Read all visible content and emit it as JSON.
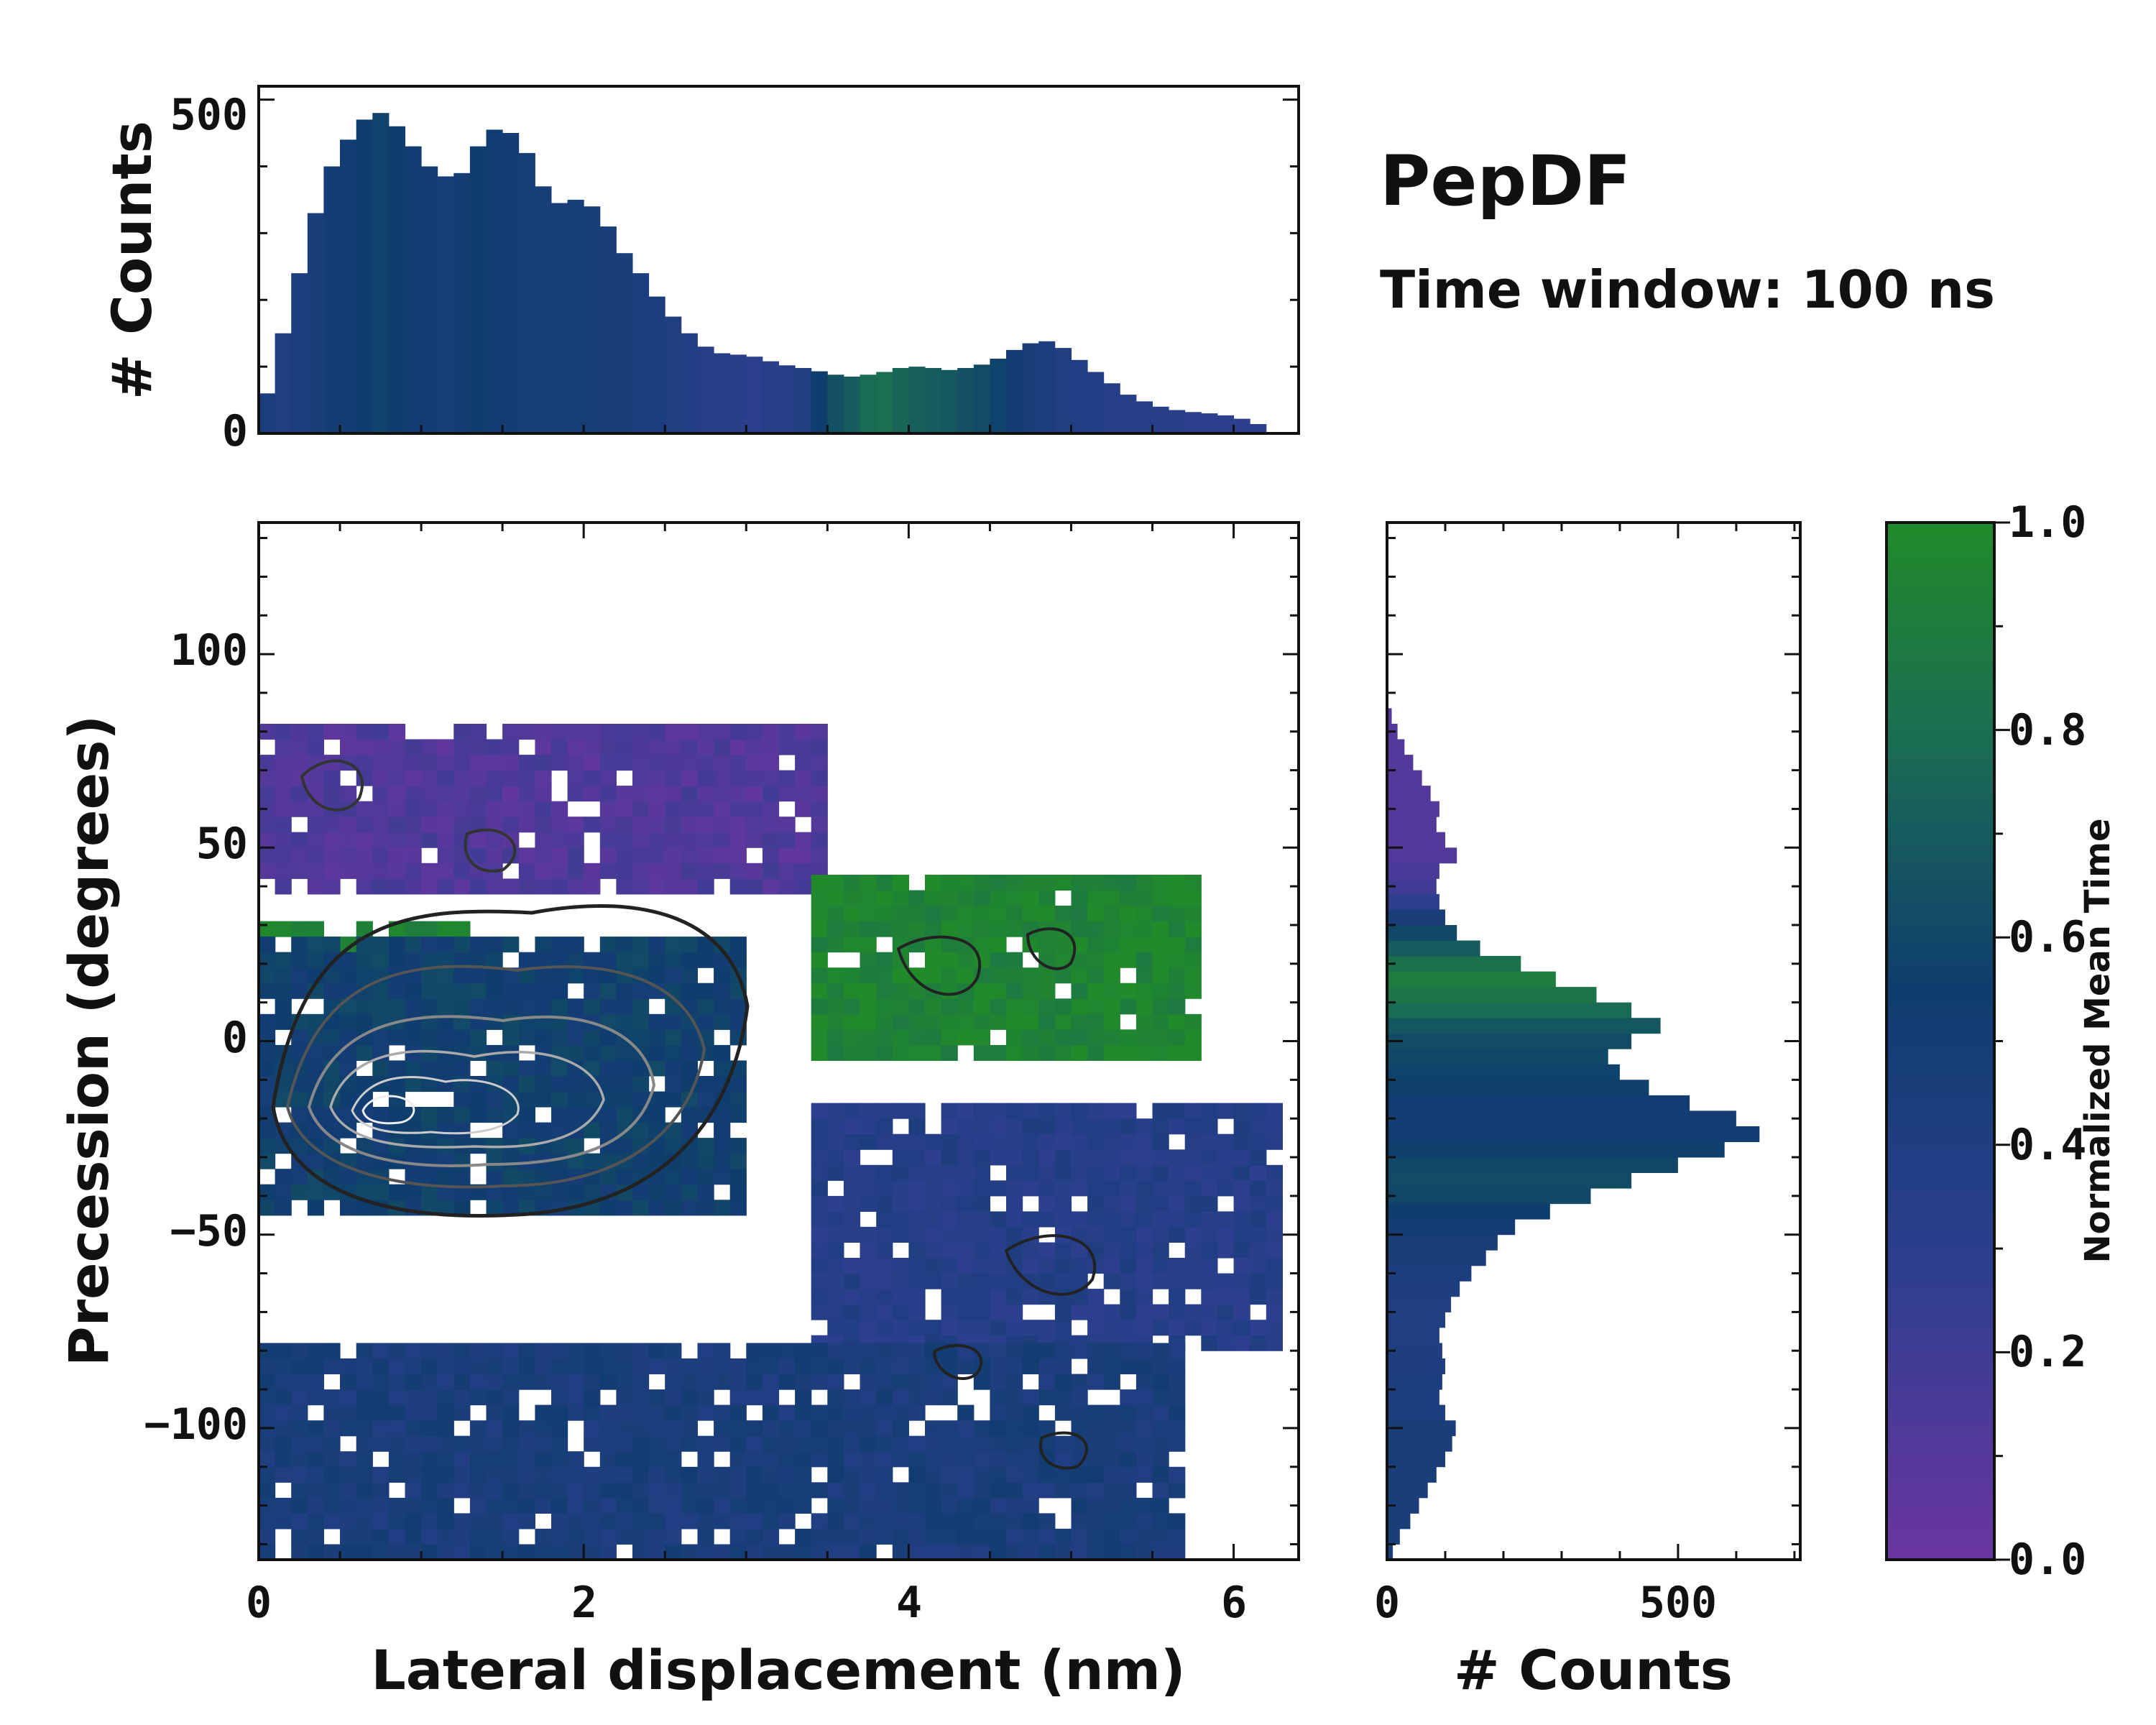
{
  "header": {
    "title": "PepDF",
    "subtitle": "Time window: 100 ns"
  },
  "colorbar": {
    "label": "Normalized Mean Time",
    "range": [
      0.0,
      1.0
    ],
    "ticks": [
      "0.0",
      "0.2",
      "0.4",
      "0.6",
      "0.8",
      "1.0"
    ],
    "colors": [
      "#6a35a0",
      "#2d3f8f",
      "#0f3d6e",
      "#1a6b54",
      "#218a2a"
    ]
  },
  "chart_data": [
    {
      "name": "joint",
      "type": "heatmap",
      "xlabel": "Lateral displacement (nm)",
      "ylabel": "Precession (degrees)",
      "xlim": [
        0,
        6.4
      ],
      "ylim": [
        -134,
        134
      ],
      "xticks": [
        "0",
        "2",
        "4",
        "6"
      ],
      "yticks": [
        "100",
        "50",
        "0",
        "−50",
        "−100"
      ],
      "regions": [
        {
          "label": "purple band",
          "x": [
            0,
            3.5
          ],
          "y": [
            38,
            82
          ],
          "mean_time": 0.12
        },
        {
          "label": "green band",
          "x": [
            0,
            1.3
          ],
          "y": [
            15,
            30
          ],
          "mean_time": 0.95
        },
        {
          "label": "core",
          "x": [
            0,
            3.0
          ],
          "y": [
            -45,
            25
          ],
          "mean_time": 0.55
        },
        {
          "label": "green right",
          "x": [
            3.4,
            5.8
          ],
          "y": [
            -5,
            40
          ],
          "mean_time": 0.95
        },
        {
          "label": "blue lower",
          "x": [
            3.4,
            6.3
          ],
          "y": [
            -80,
            -18
          ],
          "mean_time": 0.35
        },
        {
          "label": "blue bottom",
          "x": [
            0,
            5.7
          ],
          "y": [
            -134,
            -80
          ],
          "mean_time": 0.45
        }
      ]
    },
    {
      "name": "top-marginal",
      "type": "bar",
      "ylabel": "# Counts",
      "ylim": [
        0,
        520
      ],
      "yticks": [
        "500",
        "0"
      ],
      "x": [
        0.05,
        0.15,
        0.25,
        0.35,
        0.45,
        0.55,
        0.65,
        0.75,
        0.85,
        0.95,
        1.05,
        1.15,
        1.25,
        1.35,
        1.45,
        1.55,
        1.65,
        1.75,
        1.85,
        1.95,
        2.05,
        2.15,
        2.25,
        2.35,
        2.45,
        2.55,
        2.65,
        2.75,
        2.85,
        2.95,
        3.05,
        3.15,
        3.25,
        3.35,
        3.45,
        3.55,
        3.65,
        3.75,
        3.85,
        3.95,
        4.05,
        4.15,
        4.25,
        4.35,
        4.45,
        4.55,
        4.65,
        4.75,
        4.85,
        4.95,
        5.05,
        5.15,
        5.25,
        5.35,
        5.45,
        5.55,
        5.65,
        5.75,
        5.85,
        5.95,
        6.05,
        6.15,
        6.25
      ],
      "values": [
        60,
        150,
        240,
        330,
        400,
        440,
        470,
        480,
        460,
        430,
        400,
        385,
        390,
        430,
        455,
        450,
        420,
        370,
        345,
        350,
        340,
        310,
        270,
        240,
        205,
        175,
        150,
        130,
        120,
        118,
        115,
        108,
        102,
        98,
        93,
        88,
        85,
        88,
        92,
        98,
        100,
        98,
        95,
        98,
        103,
        112,
        125,
        135,
        138,
        128,
        110,
        92,
        75,
        58,
        48,
        40,
        35,
        32,
        30,
        27,
        22,
        14,
        0
      ],
      "mean_time": [
        0.42,
        0.4,
        0.42,
        0.45,
        0.5,
        0.52,
        0.55,
        0.58,
        0.55,
        0.52,
        0.5,
        0.48,
        0.5,
        0.55,
        0.52,
        0.5,
        0.48,
        0.48,
        0.47,
        0.48,
        0.47,
        0.45,
        0.45,
        0.42,
        0.42,
        0.4,
        0.38,
        0.35,
        0.35,
        0.32,
        0.3,
        0.33,
        0.35,
        0.4,
        0.55,
        0.65,
        0.7,
        0.78,
        0.8,
        0.75,
        0.72,
        0.7,
        0.68,
        0.65,
        0.62,
        0.58,
        0.5,
        0.45,
        0.42,
        0.4,
        0.38,
        0.36,
        0.35,
        0.33,
        0.33,
        0.32,
        0.32,
        0.3,
        0.3,
        0.3,
        0.28,
        0.28,
        0.28
      ]
    },
    {
      "name": "right-marginal",
      "type": "bar",
      "orientation": "horizontal",
      "xlabel": "# Counts",
      "xlim": [
        0,
        710
      ],
      "xticks": [
        "0",
        "500"
      ],
      "y": [
        -132,
        -128,
        -124,
        -120,
        -116,
        -112,
        -108,
        -104,
        -100,
        -96,
        -92,
        -88,
        -84,
        -80,
        -76,
        -72,
        -68,
        -64,
        -60,
        -56,
        -52,
        -48,
        -44,
        -40,
        -36,
        -32,
        -28,
        -24,
        -20,
        -16,
        -12,
        -8,
        -4,
        0,
        4,
        8,
        12,
        16,
        20,
        24,
        28,
        32,
        36,
        40,
        44,
        48,
        52,
        56,
        60,
        64,
        68,
        72,
        76,
        80,
        84
      ],
      "values": [
        10,
        22,
        40,
        55,
        70,
        85,
        100,
        112,
        118,
        100,
        90,
        95,
        100,
        95,
        90,
        100,
        110,
        125,
        145,
        170,
        190,
        220,
        280,
        350,
        420,
        500,
        580,
        640,
        600,
        520,
        450,
        400,
        380,
        420,
        470,
        420,
        360,
        290,
        230,
        160,
        120,
        100,
        90,
        85,
        90,
        120,
        100,
        85,
        90,
        75,
        60,
        45,
        30,
        18,
        8
      ],
      "mean_time": [
        0.45,
        0.45,
        0.45,
        0.45,
        0.45,
        0.45,
        0.45,
        0.45,
        0.45,
        0.43,
        0.42,
        0.42,
        0.41,
        0.41,
        0.4,
        0.4,
        0.4,
        0.41,
        0.42,
        0.44,
        0.46,
        0.5,
        0.55,
        0.6,
        0.62,
        0.6,
        0.56,
        0.52,
        0.5,
        0.52,
        0.56,
        0.58,
        0.6,
        0.62,
        0.68,
        0.78,
        0.85,
        0.9,
        0.82,
        0.7,
        0.6,
        0.45,
        0.3,
        0.2,
        0.15,
        0.12,
        0.1,
        0.1,
        0.1,
        0.1,
        0.1,
        0.1,
        0.1,
        0.1,
        0.1
      ]
    }
  ]
}
